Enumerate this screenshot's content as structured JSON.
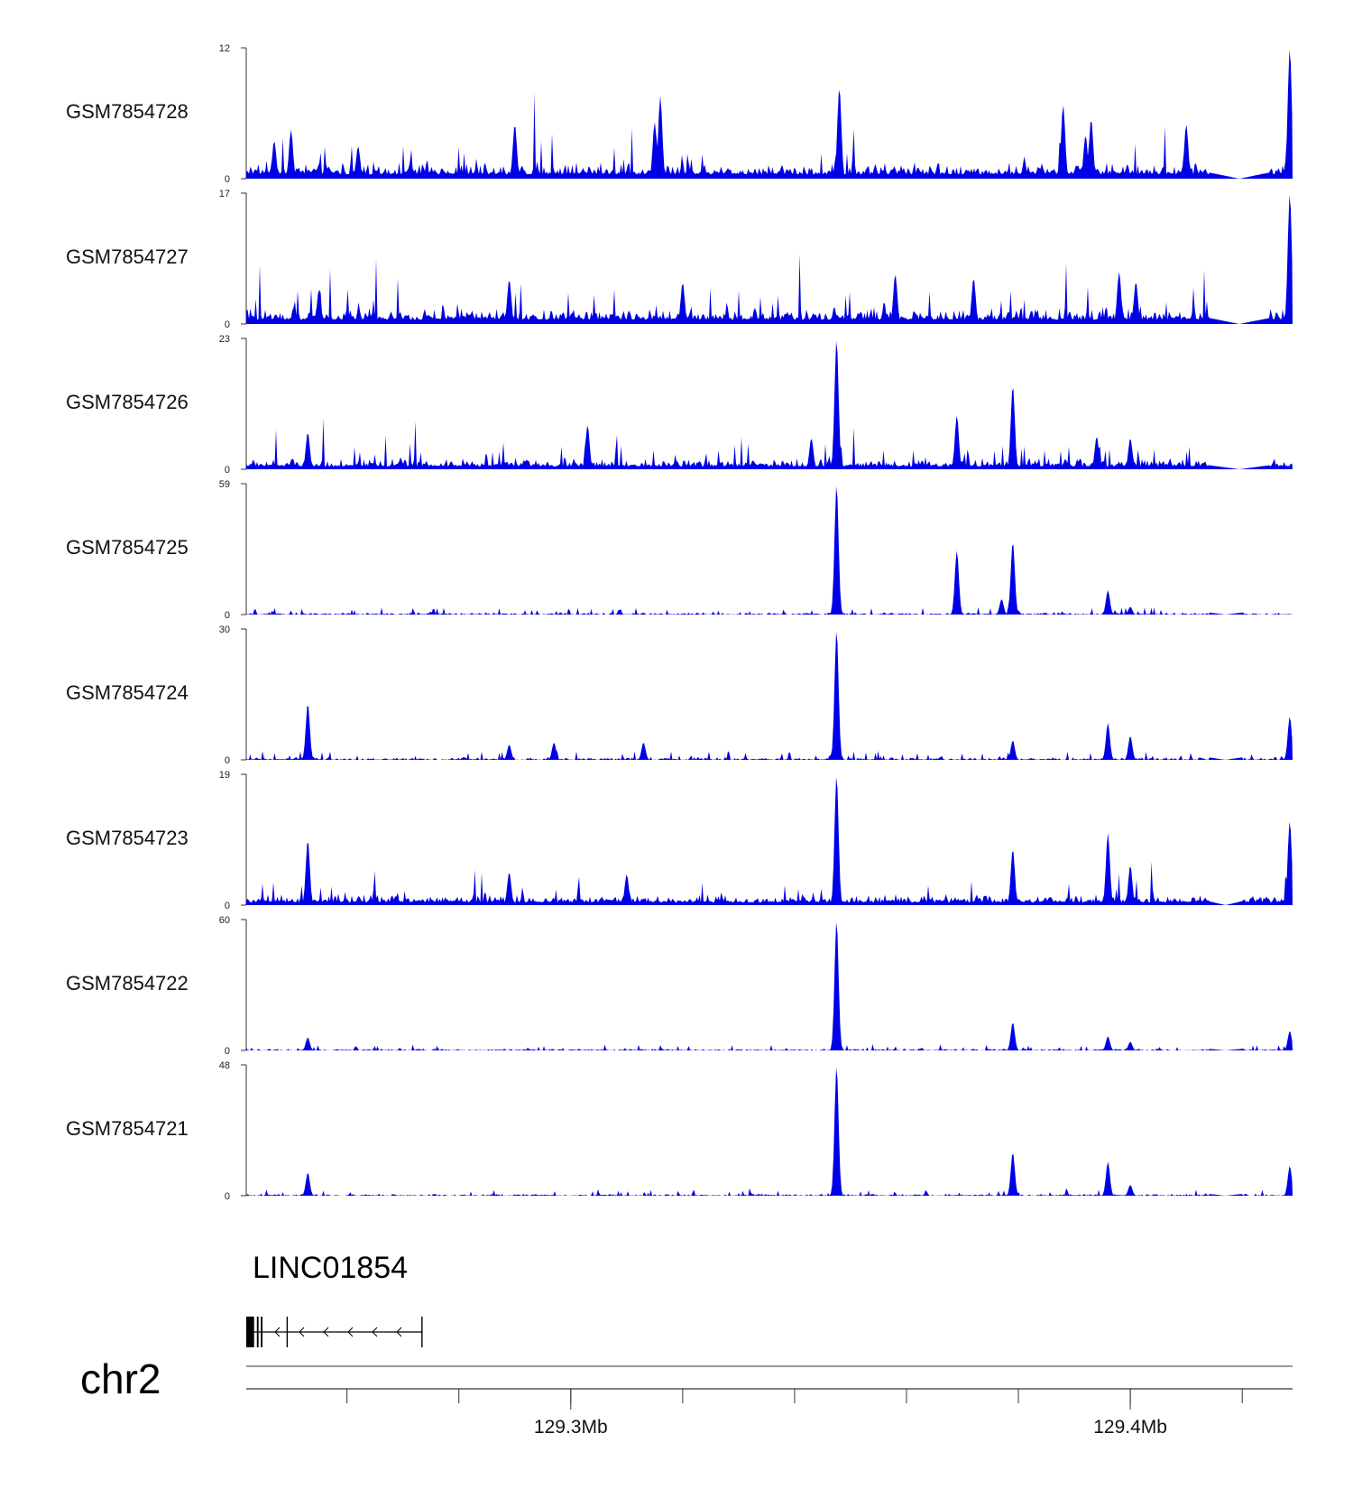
{
  "chart_data": {
    "type": "area",
    "title": "",
    "region": {
      "chrom": "chr2",
      "start": 129242000,
      "end": 129429000
    },
    "colors": {
      "signal": "#0000e6",
      "axis": "#333333",
      "gene": "#000000"
    },
    "tracks": [
      {
        "name": "GSM7854728",
        "max": 12,
        "min": 0,
        "noise": 1.6,
        "dense": true,
        "gap_from": 129414000,
        "gap_to": 129425000,
        "peaks": [
          [
            129247000,
            3.5
          ],
          [
            129250000,
            4.5
          ],
          [
            129262000,
            3
          ],
          [
            129290000,
            5
          ],
          [
            129315000,
            5.2
          ],
          [
            129316000,
            7.6
          ],
          [
            129348000,
            8.4
          ],
          [
            129388000,
            6.8
          ],
          [
            129392000,
            4
          ],
          [
            129393000,
            5.5
          ],
          [
            129410000,
            5
          ],
          [
            129428500,
            12
          ]
        ]
      },
      {
        "name": "GSM7854727",
        "max": 17,
        "min": 0,
        "noise": 2.2,
        "dense": true,
        "gap_from": 129414000,
        "gap_to": 129425000,
        "peaks": [
          [
            129255000,
            4.5
          ],
          [
            129289000,
            5.8
          ],
          [
            129320000,
            5.4
          ],
          [
            129358000,
            6.5
          ],
          [
            129372000,
            6
          ],
          [
            129398000,
            6.8
          ],
          [
            129401000,
            5.5
          ],
          [
            129428500,
            17
          ]
        ]
      },
      {
        "name": "GSM7854726",
        "max": 23,
        "min": 0,
        "noise": 2.0,
        "dense": true,
        "gap_from": 129414000,
        "gap_to": 129425000,
        "peaks": [
          [
            129253000,
            6.5
          ],
          [
            129303000,
            7.8
          ],
          [
            129343000,
            5.5
          ],
          [
            129347500,
            23
          ],
          [
            129369000,
            9.5
          ],
          [
            129379000,
            14.8
          ],
          [
            129394000,
            5.8
          ],
          [
            129400000,
            5.5
          ]
        ]
      },
      {
        "name": "GSM7854725",
        "max": 59,
        "min": 0,
        "noise": 2.5,
        "dense": false,
        "gap_from": 129414000,
        "gap_to": 129420000,
        "peaks": [
          [
            129347500,
            59
          ],
          [
            129369000,
            29
          ],
          [
            129377000,
            7
          ],
          [
            129379000,
            33
          ],
          [
            129396000,
            11
          ],
          [
            129400000,
            3.5
          ]
        ]
      },
      {
        "name": "GSM7854724",
        "max": 30,
        "min": 0,
        "noise": 1.6,
        "dense": false,
        "gap_from": 129414000,
        "gap_to": 129420000,
        "peaks": [
          [
            129253000,
            13
          ],
          [
            129289000,
            3.5
          ],
          [
            129297000,
            4
          ],
          [
            129313000,
            4
          ],
          [
            129347500,
            30
          ],
          [
            129379000,
            4.5
          ],
          [
            129396000,
            8.5
          ],
          [
            129400000,
            5.5
          ],
          [
            129428500,
            10
          ]
        ]
      },
      {
        "name": "GSM7854723",
        "max": 19,
        "min": 0,
        "noise": 1.6,
        "dense": true,
        "gap_from": 129414000,
        "gap_to": 129420000,
        "peaks": [
          [
            129253000,
            9.5
          ],
          [
            129289000,
            4.8
          ],
          [
            129310000,
            4.5
          ],
          [
            129347500,
            19
          ],
          [
            129379000,
            8.2
          ],
          [
            129396000,
            10.5
          ],
          [
            129400000,
            5.8
          ],
          [
            129428500,
            12.3
          ]
        ]
      },
      {
        "name": "GSM7854722",
        "max": 60,
        "min": 0,
        "noise": 2.0,
        "dense": false,
        "gap_from": 129414000,
        "gap_to": 129420000,
        "peaks": [
          [
            129253000,
            6
          ],
          [
            129347500,
            60
          ],
          [
            129379000,
            13
          ],
          [
            129396000,
            6.5
          ],
          [
            129400000,
            4
          ],
          [
            129428500,
            9
          ]
        ]
      },
      {
        "name": "GSM7854721",
        "max": 48,
        "min": 0,
        "noise": 1.8,
        "dense": false,
        "gap_from": 129414000,
        "gap_to": 129420000,
        "peaks": [
          [
            129253000,
            8.5
          ],
          [
            129347500,
            48
          ],
          [
            129379000,
            16
          ],
          [
            129396000,
            12.5
          ],
          [
            129400000,
            4
          ],
          [
            129428500,
            11
          ]
        ]
      }
    ],
    "gene": {
      "name": "LINC01854",
      "start": 129242000,
      "end": 129273500,
      "strand": "-",
      "exons": [
        [
          129242000,
          129243400
        ],
        [
          129243900,
          129244200
        ],
        [
          129244600,
          129244900
        ],
        [
          129249200,
          129249400
        ],
        [
          129273300,
          129273500
        ]
      ]
    },
    "x_axis": {
      "ticks": [
        129260000,
        129280000,
        129300000,
        129320000,
        129340000,
        129360000,
        129380000,
        129400000,
        129420000
      ],
      "tick_labels": [
        {
          "pos": 129300000,
          "label": "129.3Mb"
        },
        {
          "pos": 129400000,
          "label": "129.4Mb"
        }
      ]
    }
  }
}
